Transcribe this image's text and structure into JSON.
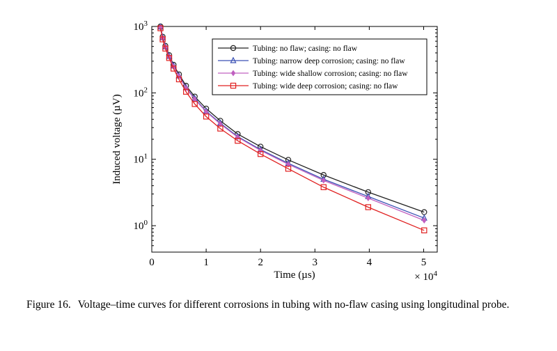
{
  "caption": {
    "label": "Figure 16.",
    "text": "Voltage–time curves for different corrosions in tubing with no-flaw casing using longitudinal probe."
  },
  "chart_data": {
    "type": "line",
    "xlabel": "Time (µs)",
    "ylabel": "Induced voltage (µV)",
    "x_scale_label": "× 10^4",
    "xlim": [
      0,
      5.25
    ],
    "ylim": [
      0.4,
      1000
    ],
    "y_scale": "log",
    "x_ticks": [
      0,
      1,
      2,
      3,
      4,
      5
    ],
    "y_ticks": [
      1,
      10,
      100,
      1000
    ],
    "y_tick_labels": [
      "10^0",
      "10^1",
      "10^2",
      "10^3"
    ],
    "grid": false,
    "legend_position": "top-right",
    "x": [
      0.16,
      0.2,
      0.25,
      0.32,
      0.4,
      0.5,
      0.63,
      0.79,
      1.0,
      1.26,
      1.58,
      2.0,
      2.51,
      3.16,
      3.98,
      5.01
    ],
    "series": [
      {
        "name": "Tubing: no flaw; casing: no flaw",
        "color": "#222222",
        "marker": "circle",
        "values": [
          1000,
          700,
          510,
          370,
          265,
          190,
          128,
          88,
          58,
          38,
          24,
          15.5,
          9.8,
          5.8,
          3.2,
          1.6
        ]
      },
      {
        "name": "Tubing: narrow deep corrosion; casing: no flaw",
        "color": "#3a50b4",
        "marker": "triangle",
        "values": [
          980,
          680,
          495,
          355,
          255,
          180,
          120,
          82,
          53,
          35,
          22,
          14,
          8.7,
          5.0,
          2.75,
          1.3
        ]
      },
      {
        "name": "Tubing: wide shallow corrosion; casing: no flaw",
        "color": "#c060c0",
        "marker": "diamond",
        "values": [
          970,
          670,
          490,
          350,
          250,
          178,
          118,
          80,
          52,
          34,
          21.5,
          13.6,
          8.4,
          4.8,
          2.6,
          1.2
        ]
      },
      {
        "name": "Tubing: wide deep corrosion; casing: no flaw",
        "color": "#e02020",
        "marker": "square",
        "values": [
          940,
          640,
          465,
          335,
          232,
          160,
          104,
          68,
          44,
          29,
          19,
          12,
          7.2,
          3.8,
          1.9,
          0.85
        ]
      }
    ]
  }
}
